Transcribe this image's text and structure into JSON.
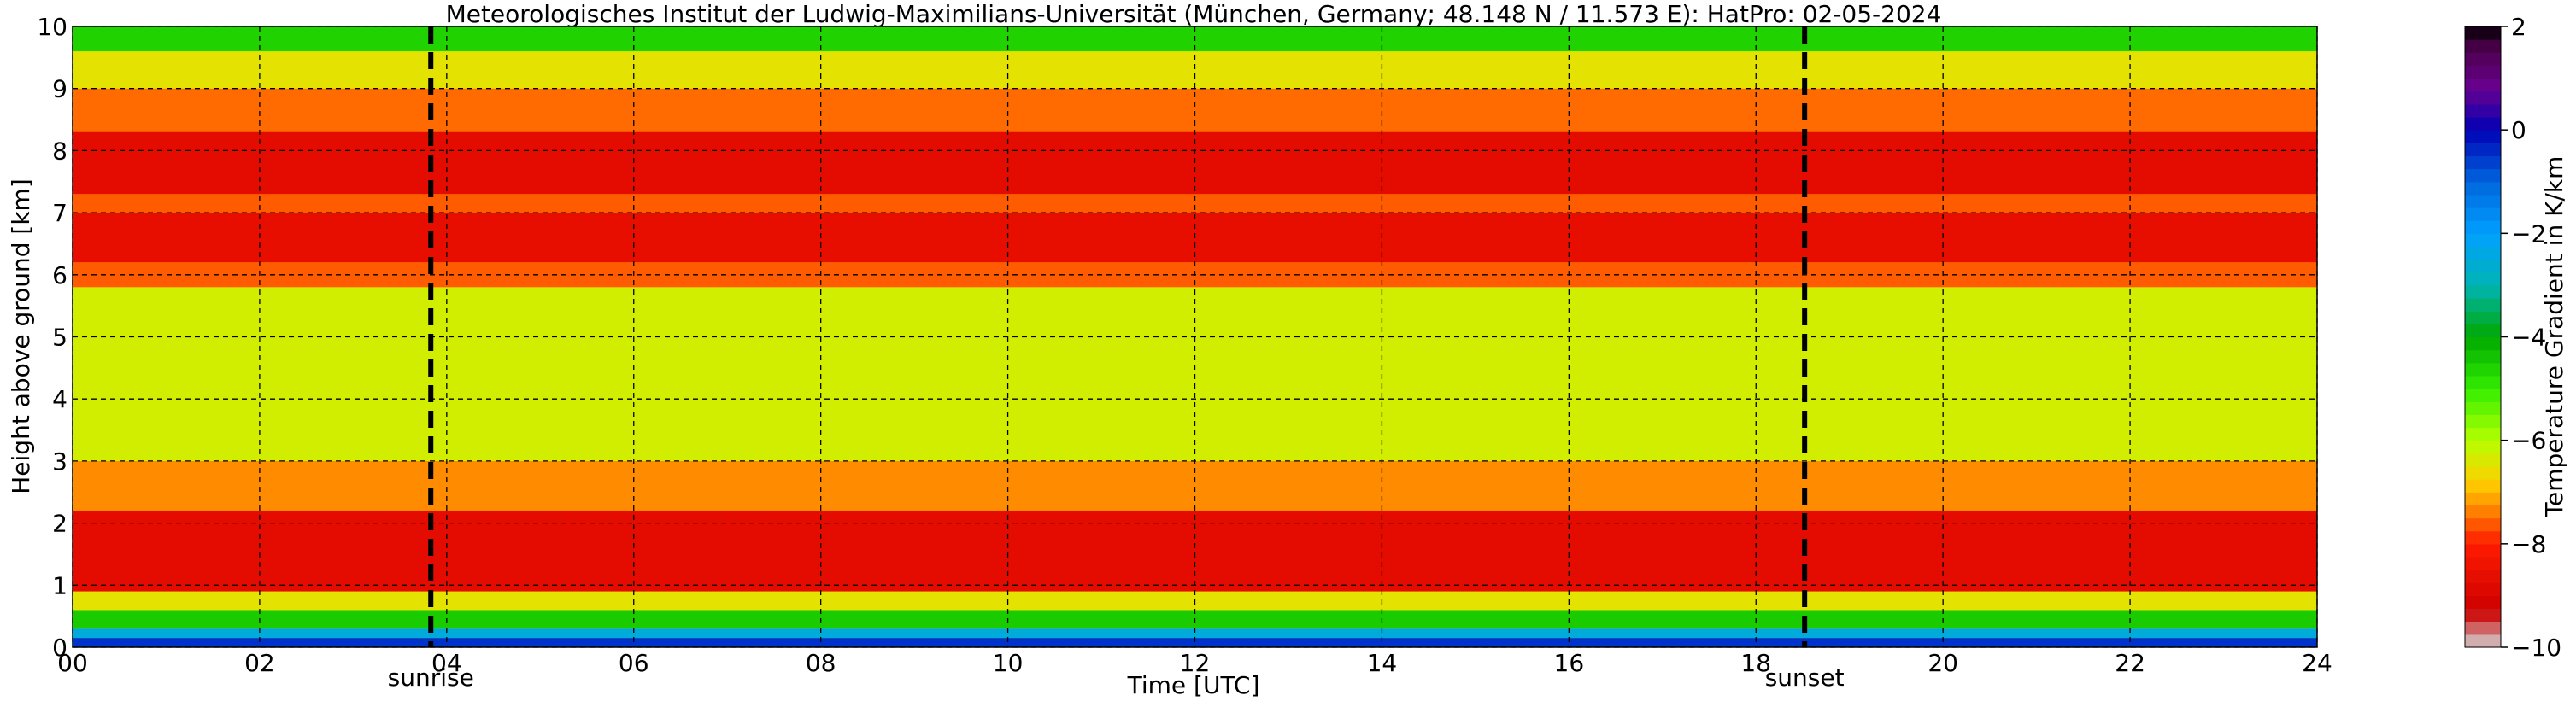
{
  "chart_data": {
    "type": "heatmap",
    "title": "Meteorologisches Institut der Ludwig-Maximilians-Universität (München, Germany; 48.148 N / 11.573 E):    HatPro: 02-05-2024",
    "xlabel": "Time [UTC]",
    "ylabel": "Height above ground [km]",
    "xlim": [
      0,
      24
    ],
    "ylim": [
      0,
      10
    ],
    "x_ticks": [
      "00",
      "02",
      "04",
      "06",
      "08",
      "10",
      "12",
      "14",
      "16",
      "18",
      "20",
      "22",
      "24"
    ],
    "y_ticks": [
      "0",
      "1",
      "2",
      "3",
      "4",
      "5",
      "6",
      "7",
      "8",
      "9",
      "10"
    ],
    "grid": true,
    "colorbar": {
      "label": "Temperature Gradient in K/km",
      "range": [
        -10,
        2
      ],
      "ticks": [
        "2",
        "0",
        "−2",
        "−4",
        "−6",
        "−8",
        "−10"
      ]
    },
    "events": [
      {
        "label": "sunrise",
        "time_utc": 3.83
      },
      {
        "label": "sunset",
        "time_utc": 18.52
      }
    ],
    "layers_km_gradient": [
      {
        "from": 0.0,
        "to": 0.15,
        "value": -0.5
      },
      {
        "from": 0.15,
        "to": 0.3,
        "value": -2.5
      },
      {
        "from": 0.3,
        "to": 0.6,
        "value": -4.5
      },
      {
        "from": 0.6,
        "to": 0.9,
        "value": -6.5
      },
      {
        "from": 0.9,
        "to": 2.2,
        "value": -8.7
      },
      {
        "from": 2.2,
        "to": 3.0,
        "value": -7.3
      },
      {
        "from": 3.0,
        "to": 5.8,
        "value": -6.3
      },
      {
        "from": 5.8,
        "to": 6.2,
        "value": -7.6
      },
      {
        "from": 6.2,
        "to": 7.0,
        "value": -8.6
      },
      {
        "from": 7.0,
        "to": 7.3,
        "value": -7.6
      },
      {
        "from": 7.3,
        "to": 8.3,
        "value": -8.7
      },
      {
        "from": 8.3,
        "to": 9.0,
        "value": -7.5
      },
      {
        "from": 9.0,
        "to": 9.6,
        "value": -6.5
      },
      {
        "from": 9.6,
        "to": 10.0,
        "value": -4.6
      }
    ]
  }
}
